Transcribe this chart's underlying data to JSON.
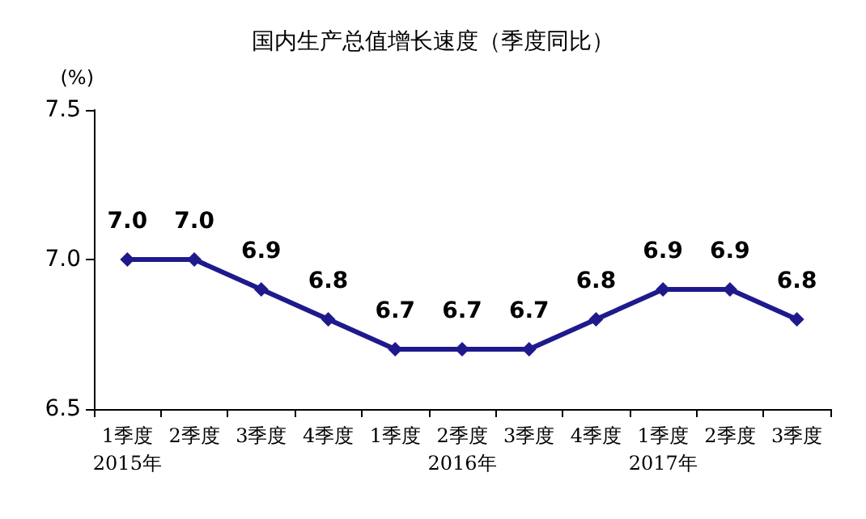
{
  "chart_data": {
    "type": "line",
    "title": "国内生产总值增长速度（季度同比）",
    "ylabel": "(%)",
    "categories": [
      "1季度\n2015年",
      "2季度",
      "3季度",
      "4季度",
      "1季度",
      "2季度\n2016年",
      "3季度",
      "4季度",
      "1季度\n2017年",
      "2季度",
      "3季度"
    ],
    "series": [
      {
        "color": "#1f1a8c",
        "values": [
          7.0,
          7.0,
          6.9,
          6.8,
          6.7,
          6.7,
          6.7,
          6.8,
          6.9,
          6.9,
          6.8
        ],
        "value_labels": [
          "7.0",
          "7.0",
          "6.9",
          "6.8",
          "6.7",
          "6.7",
          "6.7",
          "6.8",
          "6.9",
          "6.9",
          "6.8"
        ]
      }
    ],
    "ylim": [
      6.5,
      7.5
    ],
    "yticks": [
      {
        "value": 6.5,
        "label": "6.5"
      },
      {
        "value": 7,
        "label": "7.0"
      },
      {
        "value": 7.5,
        "label": "7.5"
      }
    ],
    "grid": false,
    "marker": "diamond",
    "line_style": "solid"
  }
}
